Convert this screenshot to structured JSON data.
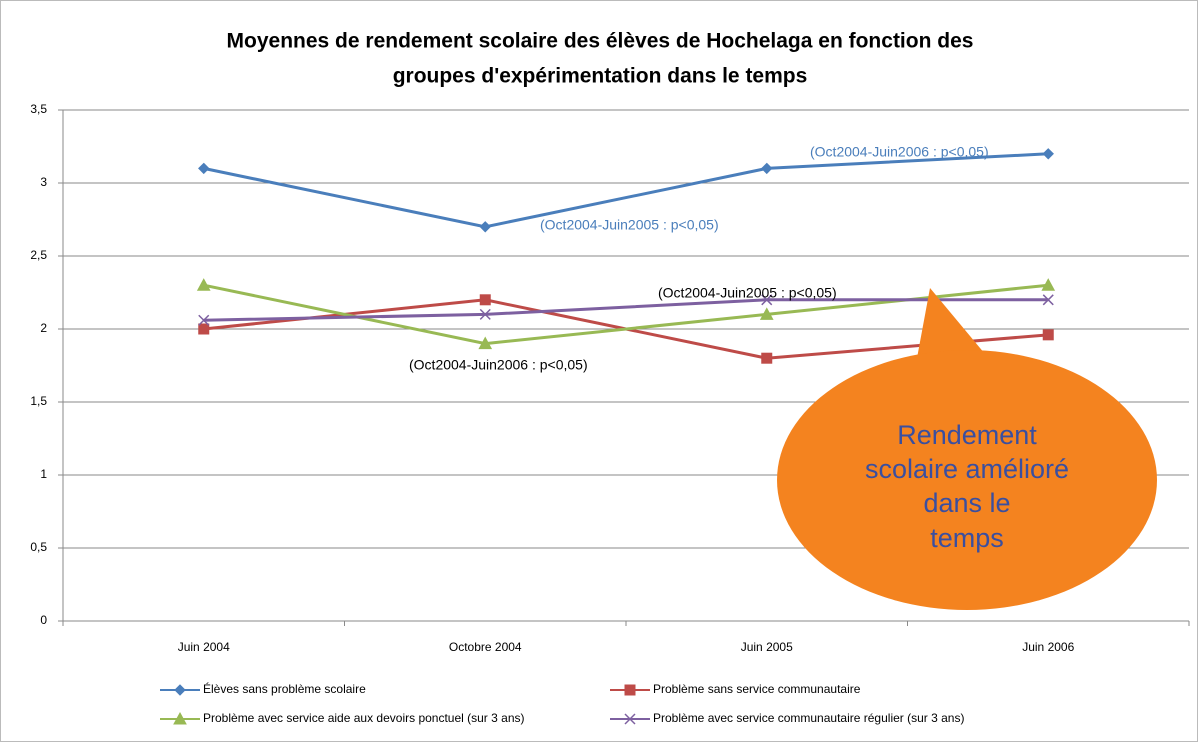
{
  "chart_data": {
    "type": "line",
    "title": [
      "Moyennes de rendement scolaire des élèves de Hochelaga en fonction des",
      "groupes d'expérimentation dans le temps"
    ],
    "categories": [
      "Juin 2004",
      "Octobre 2004",
      "Juin 2005",
      "Juin 2006"
    ],
    "series": [
      {
        "name": "Élèves sans problème scolaire",
        "color": "#4a7ebb",
        "marker": "diamond",
        "values": [
          3.1,
          2.7,
          3.1,
          3.2
        ]
      },
      {
        "name": "Problème sans service communautaire",
        "color": "#be4b48",
        "marker": "square",
        "values": [
          2.0,
          2.2,
          1.8,
          1.96
        ]
      },
      {
        "name": "Problème avec service aide aux devoirs ponctuel (sur 3 ans)",
        "color": "#98b954",
        "marker": "triangle",
        "values": [
          2.3,
          1.9,
          2.1,
          2.3
        ]
      },
      {
        "name": "Problème avec service communautaire  régulier (sur 3 ans)",
        "color": "#7d60a0",
        "marker": "x",
        "values": [
          2.06,
          2.1,
          2.2,
          2.2
        ]
      }
    ],
    "ylim": [
      0,
      3.5
    ],
    "yticks": [
      0,
      {
        "value": 0.5,
        "label": "0,5"
      },
      1,
      {
        "value": 1.5,
        "label": "1,5"
      },
      2,
      {
        "value": 2.5,
        "label": "2,5"
      },
      3,
      {
        "value": 3.5,
        "label": "3,5"
      }
    ],
    "grid": true,
    "legend": "bottom",
    "annotations": [
      "(Oct2004-Juin2006  : p<0,05)",
      "(Oct2004-Juin2005  : p<0,05)",
      "(Oct2004-Juin2005  : p<0,05)",
      "(Oct2004-Juin2006  : p<0,05)"
    ],
    "callout": [
      "Rendement",
      "scolaire amélioré",
      "dans le",
      "temps"
    ]
  }
}
